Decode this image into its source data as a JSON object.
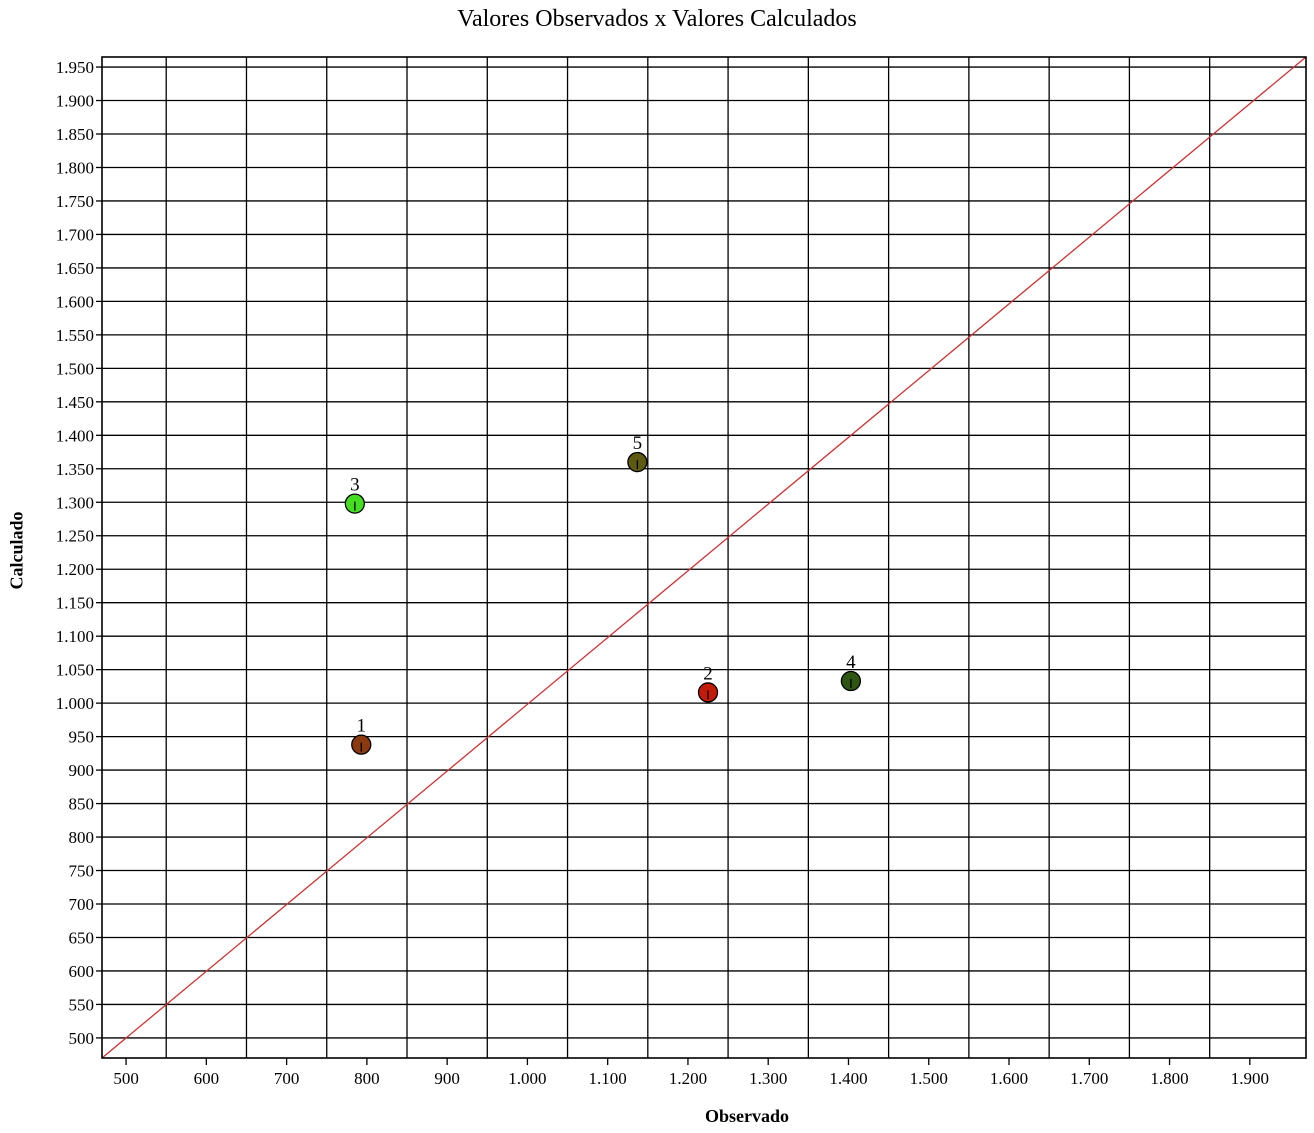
{
  "chart_data": {
    "type": "scatter",
    "title": "Valores Observados x Valores Calculados",
    "xlabel": "Observado",
    "ylabel": "Calculado",
    "xlim": [
      470,
      1970
    ],
    "ylim": [
      470,
      1965
    ],
    "grid": true,
    "x_ticks": [
      {
        "value": 500,
        "label": "500"
      },
      {
        "value": 600,
        "label": "600"
      },
      {
        "value": 700,
        "label": "700"
      },
      {
        "value": 800,
        "label": "800"
      },
      {
        "value": 900,
        "label": "900"
      },
      {
        "value": 1000,
        "label": "1.000"
      },
      {
        "value": 1100,
        "label": "1.100"
      },
      {
        "value": 1200,
        "label": "1.200"
      },
      {
        "value": 1300,
        "label": "1.300"
      },
      {
        "value": 1400,
        "label": "1.400"
      },
      {
        "value": 1500,
        "label": "1.500"
      },
      {
        "value": 1600,
        "label": "1.600"
      },
      {
        "value": 1700,
        "label": "1.700"
      },
      {
        "value": 1800,
        "label": "1.800"
      },
      {
        "value": 1900,
        "label": "1.900"
      }
    ],
    "x_grid": [
      550,
      650,
      750,
      850,
      950,
      1050,
      1150,
      1250,
      1350,
      1450,
      1550,
      1650,
      1750,
      1850
    ],
    "y_ticks": [
      {
        "value": 500,
        "label": "500"
      },
      {
        "value": 550,
        "label": "550"
      },
      {
        "value": 600,
        "label": "600"
      },
      {
        "value": 650,
        "label": "650"
      },
      {
        "value": 700,
        "label": "700"
      },
      {
        "value": 750,
        "label": "750"
      },
      {
        "value": 800,
        "label": "800"
      },
      {
        "value": 850,
        "label": "850"
      },
      {
        "value": 900,
        "label": "900"
      },
      {
        "value": 950,
        "label": "950"
      },
      {
        "value": 1000,
        "label": "1.000"
      },
      {
        "value": 1050,
        "label": "1.050"
      },
      {
        "value": 1100,
        "label": "1.100"
      },
      {
        "value": 1150,
        "label": "1.150"
      },
      {
        "value": 1200,
        "label": "1.200"
      },
      {
        "value": 1250,
        "label": "1.250"
      },
      {
        "value": 1300,
        "label": "1.300"
      },
      {
        "value": 1350,
        "label": "1.350"
      },
      {
        "value": 1400,
        "label": "1.400"
      },
      {
        "value": 1450,
        "label": "1.450"
      },
      {
        "value": 1500,
        "label": "1.500"
      },
      {
        "value": 1550,
        "label": "1.550"
      },
      {
        "value": 1600,
        "label": "1.600"
      },
      {
        "value": 1650,
        "label": "1.650"
      },
      {
        "value": 1700,
        "label": "1.700"
      },
      {
        "value": 1750,
        "label": "1.750"
      },
      {
        "value": 1800,
        "label": "1.800"
      },
      {
        "value": 1850,
        "label": "1.850"
      },
      {
        "value": 1900,
        "label": "1.900"
      },
      {
        "value": 1950,
        "label": "1.950"
      }
    ],
    "reference_line": {
      "from": [
        470,
        470
      ],
      "to": [
        1970,
        1965
      ],
      "color": "#cc3333"
    },
    "points": [
      {
        "label": "1",
        "x": 793,
        "y": 938,
        "color": "#8b3a10"
      },
      {
        "label": "2",
        "x": 1225,
        "y": 1016,
        "color": "#c41a0a"
      },
      {
        "label": "3",
        "x": 785,
        "y": 1298,
        "color": "#44dd22"
      },
      {
        "label": "4",
        "x": 1403,
        "y": 1033,
        "color": "#2e5512"
      },
      {
        "label": "5",
        "x": 1137,
        "y": 1360,
        "color": "#5e5a12"
      }
    ]
  }
}
